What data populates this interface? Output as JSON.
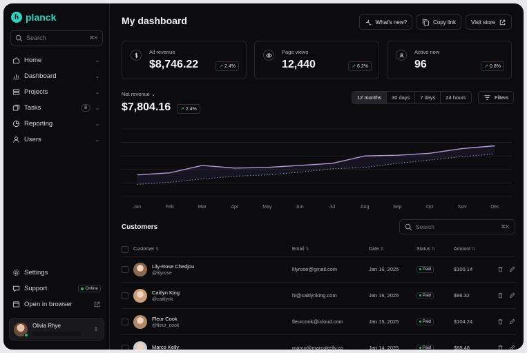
{
  "brand": {
    "name": "planck",
    "mark": "ħ",
    "accent": "#2dd4bf"
  },
  "sidebar": {
    "search_placeholder": "Search",
    "search_shortcut": "⌘K",
    "items": [
      {
        "label": "Home",
        "icon": "home-icon"
      },
      {
        "label": "Dashboard",
        "icon": "chart-icon"
      },
      {
        "label": "Projects",
        "icon": "layers-icon"
      },
      {
        "label": "Tasks",
        "icon": "tasks-icon",
        "count": "8"
      },
      {
        "label": "Reporting",
        "icon": "pie-icon"
      },
      {
        "label": "Users",
        "icon": "users-icon"
      }
    ],
    "bottom": [
      {
        "label": "Settings",
        "icon": "gear-icon"
      },
      {
        "label": "Support",
        "icon": "chat-icon",
        "badge": "Online"
      },
      {
        "label": "Open in browser",
        "icon": "browser-icon"
      }
    ],
    "user": {
      "name": "Olivia Rhye"
    }
  },
  "header": {
    "title": "My dashboard",
    "buttons": [
      "What's new?",
      "Copy link",
      "Visit store"
    ]
  },
  "stats": [
    {
      "label": "All revenue",
      "value": "$8,746.22",
      "trend": "2.4%",
      "icon": "dollar-icon"
    },
    {
      "label": "Page views",
      "value": "12,440",
      "trend": "6.2%",
      "icon": "eye-icon"
    },
    {
      "label": "Active now",
      "value": "96",
      "trend": "0.8%",
      "icon": "user-circle-icon"
    }
  ],
  "revenue": {
    "label": "Net revenue",
    "value": "$7,804.16",
    "trend": "2.4%",
    "ranges": [
      "12 months",
      "30 days",
      "7 days",
      "24 hours"
    ],
    "active_range": "12 months",
    "filters_label": "Filters"
  },
  "chart_data": {
    "type": "line",
    "x": [
      "Jan",
      "Feb",
      "Mar",
      "Apr",
      "May",
      "Jun",
      "Jul",
      "Aug",
      "Sep",
      "Oct",
      "Nov",
      "Dec"
    ],
    "series": [
      {
        "values": [
          3.2,
          3.5,
          4.6,
          4.2,
          4.3,
          4.6,
          4.9,
          6.0,
          6.1,
          6.4,
          7.1,
          7.5
        ],
        "style": "solid",
        "color": "#b39ddb"
      },
      {
        "values": [
          1.8,
          2.1,
          2.6,
          3.0,
          3.2,
          3.6,
          4.1,
          4.3,
          4.9,
          5.4,
          5.9,
          6.3
        ],
        "style": "dotted",
        "color": "#8b8bb0"
      }
    ],
    "ylim": [
      0,
      10
    ],
    "grid": true,
    "xlabel": "",
    "ylabel": ""
  },
  "customers": {
    "title": "Customers",
    "search_placeholder": "Search",
    "search_shortcut": "⌘K",
    "columns": [
      "Customer",
      "Email",
      "Date",
      "Status",
      "Amount"
    ],
    "rows": [
      {
        "name": "Lily-Rose Chedjou",
        "handle": "@lilyrose",
        "email": "lilyrose@gmail.com",
        "date": "Jan 16, 2025",
        "status": "Paid",
        "amount": "$100.14",
        "avatar_color": "#8a6a4f"
      },
      {
        "name": "Caitlyn King",
        "handle": "@caitlynk",
        "email": "hi@caitlynking.com",
        "date": "Jan 16, 2025",
        "status": "Paid",
        "amount": "$96.32",
        "avatar_color": "#c9a07a"
      },
      {
        "name": "Fleur Cook",
        "handle": "@fleur_cook",
        "email": "fleurcook@icloud.com",
        "date": "Jan 15, 2025",
        "status": "Paid",
        "amount": "$104.24",
        "avatar_color": "#b0886a"
      },
      {
        "name": "Marco Kelly",
        "handle": "",
        "email": "marco@marcokelly.co",
        "date": "Jan 14, 2025",
        "status": "Paid",
        "amount": "$88.48",
        "avatar_color": "#d0d0d0"
      }
    ]
  }
}
